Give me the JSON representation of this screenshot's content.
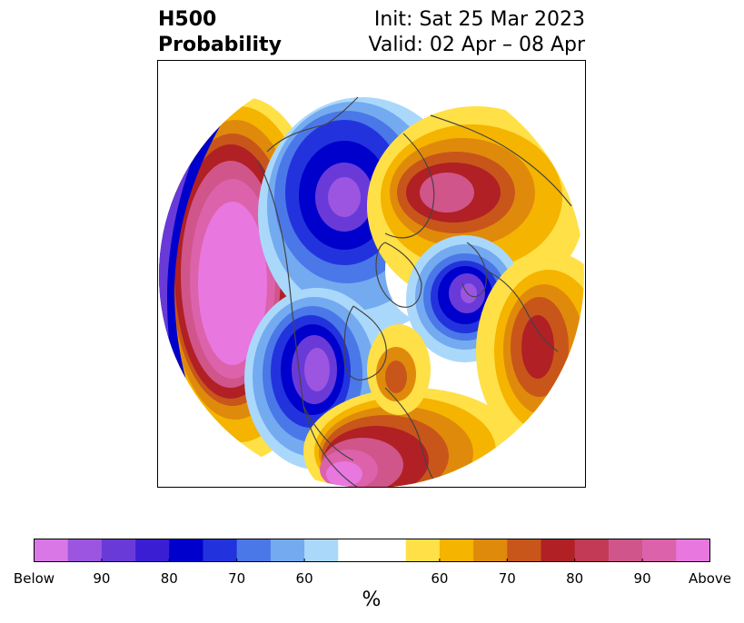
{
  "title": {
    "left_line1": "H500",
    "left_line2": "Probability",
    "right_line1": "Init: Sat 25 Mar 2023",
    "right_line2": "Valid: 02 Apr – 08 Apr"
  },
  "colorbar": {
    "unit": "%",
    "colors": [
      "#d977e6",
      "#9b55e0",
      "#6a3ad8",
      "#3a1ed4",
      "#0000cc",
      "#2233dd",
      "#4a78e8",
      "#74aaf0",
      "#aad8fb",
      "#ffffff",
      "#ffffff",
      "#ffe046",
      "#f4b400",
      "#e08a0c",
      "#c8561a",
      "#b02024",
      "#c23a55",
      "#d0558a",
      "#dc62ab",
      "#e877e0"
    ],
    "tick_labels": [
      "Below",
      "90",
      "80",
      "70",
      "60",
      "60",
      "70",
      "80",
      "90",
      "Above"
    ]
  },
  "map": {
    "colors": {
      "above_max": "#e877e0",
      "above_90": "#dc62ab",
      "above_85": "#d0558a",
      "above_80": "#b02024",
      "above_70": "#c8561a",
      "above_65": "#e08a0c",
      "above_60": "#f4b400",
      "above_55": "#ffe046",
      "below_55": "#aad8fb",
      "below_60": "#74aaf0",
      "below_65": "#4a78e8",
      "below_70": "#2233dd",
      "below_80": "#0000cc",
      "below_85": "#6a3ad8",
      "below_90": "#9b55e0",
      "coast": "#444444"
    }
  }
}
